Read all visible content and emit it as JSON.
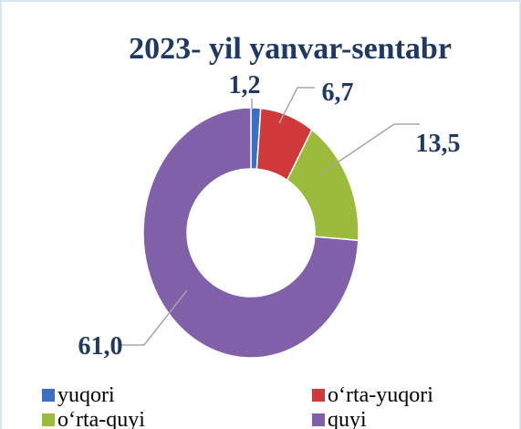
{
  "chart_data": {
    "type": "donut",
    "title": "2023- yil yanvar-sentabr",
    "categories": [
      "yuqori",
      "o‘rta-yuqori",
      "o‘rta-quyi",
      "quyi"
    ],
    "values": [
      1.2,
      6.7,
      13.5,
      61.0
    ],
    "value_labels": [
      "1,2",
      "6,7",
      "13,5",
      "61,0"
    ],
    "colors": [
      "#3a6fc4",
      "#d0393a",
      "#9bbb3c",
      "#8060a8"
    ]
  }
}
